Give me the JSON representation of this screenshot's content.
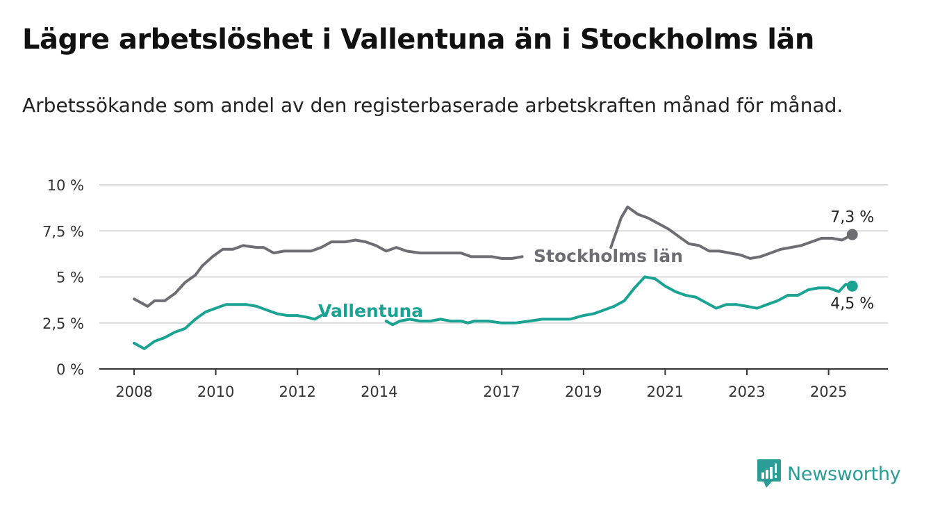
{
  "header": {
    "title": "Lägre arbetslöshet i Vallentuna än i Stockholms län",
    "subtitle": "Arbetssökande som andel av den registerbaserade arbetskraften månad för månad."
  },
  "brand": {
    "name": "Newsworthy",
    "icon": "newsworthy-logo-icon"
  },
  "colors": {
    "stockholm": "#6e6d73",
    "vallentuna": "#1aa392",
    "grid": "#d9d9d9",
    "axis": "#333333"
  },
  "chart_data": {
    "type": "line",
    "x_ticks": [
      2008,
      2010,
      2012,
      2014,
      2017,
      2019,
      2021,
      2023,
      2025
    ],
    "x_tick_labels": [
      "2008",
      "2010",
      "2012",
      "2014",
      "2017",
      "2019",
      "2021",
      "2023",
      "2025"
    ],
    "y_ticks": [
      0,
      2.5,
      5,
      7.5,
      10
    ],
    "y_tick_labels": [
      "0 %",
      "2,5 %",
      "5 %",
      "7,5 %",
      "10 %"
    ],
    "xlim": [
      2007.2,
      2026.5
    ],
    "ylim": [
      0,
      10
    ],
    "grid": true,
    "series": [
      {
        "name": "Stockholms län",
        "color": "#6e6d73",
        "end_label": "7,3 %",
        "points": [
          [
            2008.0,
            3.8
          ],
          [
            2008.33,
            3.4
          ],
          [
            2008.5,
            3.7
          ],
          [
            2008.75,
            3.7
          ],
          [
            2009.0,
            4.1
          ],
          [
            2009.25,
            4.7
          ],
          [
            2009.5,
            5.1
          ],
          [
            2009.67,
            5.6
          ],
          [
            2009.92,
            6.1
          ],
          [
            2010.17,
            6.5
          ],
          [
            2010.42,
            6.5
          ],
          [
            2010.67,
            6.7
          ],
          [
            2011.0,
            6.6
          ],
          [
            2011.17,
            6.6
          ],
          [
            2011.42,
            6.3
          ],
          [
            2011.67,
            6.4
          ],
          [
            2012.0,
            6.4
          ],
          [
            2012.33,
            6.4
          ],
          [
            2012.58,
            6.6
          ],
          [
            2012.83,
            6.9
          ],
          [
            2013.17,
            6.9
          ],
          [
            2013.42,
            7.0
          ],
          [
            2013.67,
            6.9
          ],
          [
            2013.92,
            6.7
          ],
          [
            2014.17,
            6.4
          ],
          [
            2014.42,
            6.6
          ],
          [
            2014.67,
            6.4
          ],
          [
            2015.0,
            6.3
          ],
          [
            2015.33,
            6.3
          ],
          [
            2015.67,
            6.3
          ],
          [
            2016.0,
            6.3
          ],
          [
            2016.25,
            6.1
          ],
          [
            2016.5,
            6.1
          ],
          [
            2016.75,
            6.1
          ],
          [
            2017.0,
            6.0
          ],
          [
            2017.25,
            6.0
          ],
          [
            2017.5,
            6.1
          ],
          [
            2019.67,
            6.6
          ],
          [
            2019.92,
            8.2
          ],
          [
            2020.08,
            8.8
          ],
          [
            2020.33,
            8.4
          ],
          [
            2020.58,
            8.2
          ],
          [
            2020.83,
            7.9
          ],
          [
            2021.08,
            7.6
          ],
          [
            2021.33,
            7.2
          ],
          [
            2021.58,
            6.8
          ],
          [
            2021.83,
            6.7
          ],
          [
            2022.08,
            6.4
          ],
          [
            2022.33,
            6.4
          ],
          [
            2022.58,
            6.3
          ],
          [
            2022.83,
            6.2
          ],
          [
            2023.08,
            6.0
          ],
          [
            2023.33,
            6.1
          ],
          [
            2023.58,
            6.3
          ],
          [
            2023.83,
            6.5
          ],
          [
            2024.08,
            6.6
          ],
          [
            2024.33,
            6.7
          ],
          [
            2024.58,
            6.9
          ],
          [
            2024.83,
            7.1
          ],
          [
            2025.08,
            7.1
          ],
          [
            2025.33,
            7.0
          ],
          [
            2025.58,
            7.3
          ]
        ]
      },
      {
        "name": "Vallentuna",
        "color": "#1aa392",
        "end_label": "4,5 %",
        "points": [
          [
            2008.0,
            1.4
          ],
          [
            2008.25,
            1.1
          ],
          [
            2008.5,
            1.5
          ],
          [
            2008.75,
            1.7
          ],
          [
            2009.0,
            2.0
          ],
          [
            2009.25,
            2.2
          ],
          [
            2009.5,
            2.7
          ],
          [
            2009.75,
            3.1
          ],
          [
            2010.0,
            3.3
          ],
          [
            2010.25,
            3.5
          ],
          [
            2010.5,
            3.5
          ],
          [
            2010.75,
            3.5
          ],
          [
            2011.0,
            3.4
          ],
          [
            2011.25,
            3.2
          ],
          [
            2011.5,
            3.0
          ],
          [
            2011.75,
            2.9
          ],
          [
            2012.0,
            2.9
          ],
          [
            2012.25,
            2.8
          ],
          [
            2012.42,
            2.7
          ],
          [
            2012.58,
            2.9
          ],
          [
            2014.17,
            2.6
          ],
          [
            2014.33,
            2.4
          ],
          [
            2014.5,
            2.6
          ],
          [
            2014.75,
            2.7
          ],
          [
            2015.0,
            2.6
          ],
          [
            2015.25,
            2.6
          ],
          [
            2015.5,
            2.7
          ],
          [
            2015.75,
            2.6
          ],
          [
            2016.0,
            2.6
          ],
          [
            2016.17,
            2.5
          ],
          [
            2016.33,
            2.6
          ],
          [
            2016.67,
            2.6
          ],
          [
            2017.0,
            2.5
          ],
          [
            2017.33,
            2.5
          ],
          [
            2017.67,
            2.6
          ],
          [
            2018.0,
            2.7
          ],
          [
            2018.33,
            2.7
          ],
          [
            2018.67,
            2.7
          ],
          [
            2019.0,
            2.9
          ],
          [
            2019.25,
            3.0
          ],
          [
            2019.5,
            3.2
          ],
          [
            2019.75,
            3.4
          ],
          [
            2020.0,
            3.7
          ],
          [
            2020.25,
            4.4
          ],
          [
            2020.5,
            5.0
          ],
          [
            2020.75,
            4.9
          ],
          [
            2021.0,
            4.5
          ],
          [
            2021.25,
            4.2
          ],
          [
            2021.5,
            4.0
          ],
          [
            2021.75,
            3.9
          ],
          [
            2022.0,
            3.6
          ],
          [
            2022.25,
            3.3
          ],
          [
            2022.5,
            3.5
          ],
          [
            2022.75,
            3.5
          ],
          [
            2023.0,
            3.4
          ],
          [
            2023.25,
            3.3
          ],
          [
            2023.5,
            3.5
          ],
          [
            2023.75,
            3.7
          ],
          [
            2024.0,
            4.0
          ],
          [
            2024.25,
            4.0
          ],
          [
            2024.5,
            4.3
          ],
          [
            2024.75,
            4.4
          ],
          [
            2025.0,
            4.4
          ],
          [
            2025.25,
            4.2
          ],
          [
            2025.42,
            4.6
          ],
          [
            2025.58,
            4.5
          ]
        ]
      }
    ]
  }
}
